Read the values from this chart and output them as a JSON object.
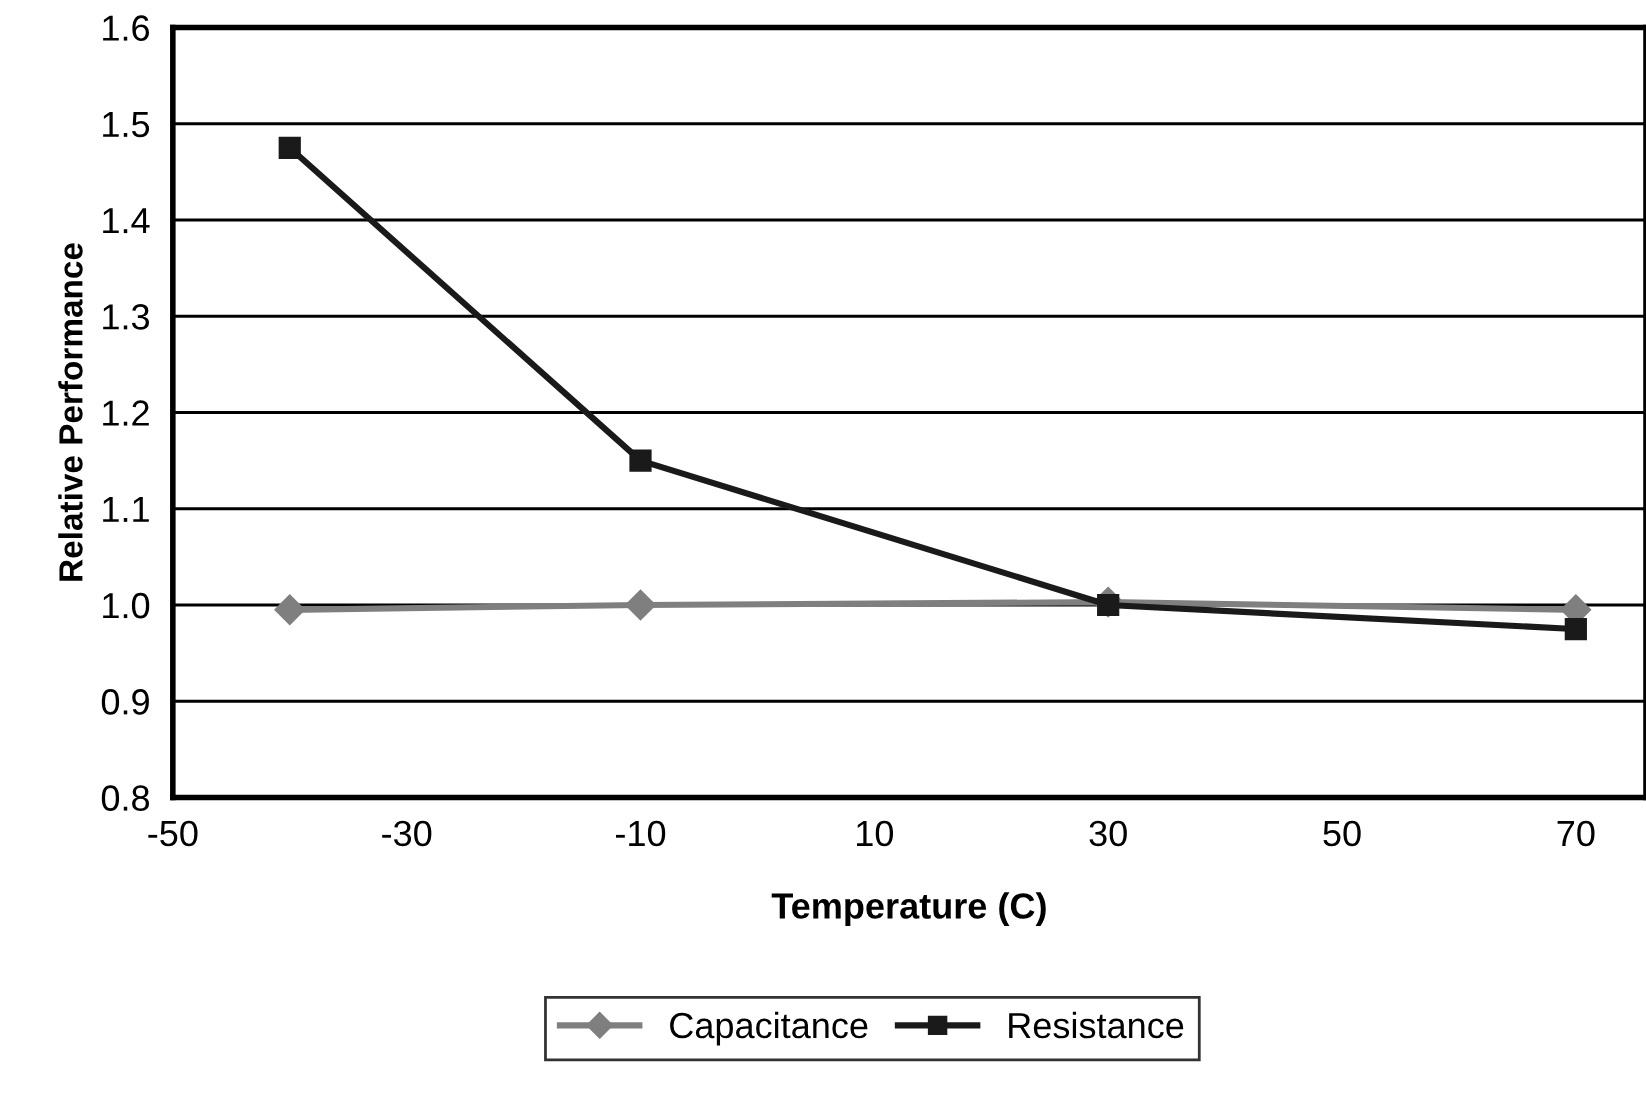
{
  "chart_data": {
    "type": "line",
    "xlabel": "Temperature (C)",
    "ylabel": "Relative Performance",
    "xlim": [
      -50,
      76
    ],
    "xticks": [
      -50,
      -30,
      -10,
      10,
      30,
      50,
      70
    ],
    "ylim": [
      0.8,
      1.6
    ],
    "yticks": [
      0.8,
      0.9,
      {
        "value": 1.0,
        "label": "1.0"
      },
      1.1,
      1.2,
      1.3,
      1.4,
      1.5,
      1.6
    ],
    "grid": "y",
    "legend": "bottom",
    "line_style": "solid",
    "series": [
      {
        "name": "Capacitance",
        "color": "#7f7f7f",
        "marker": "diamond",
        "x": [
          -40,
          -10,
          30,
          70
        ],
        "values": [
          0.995,
          1.0,
          1.003,
          0.995
        ]
      },
      {
        "name": "Resistance",
        "color": "#1a1a1a",
        "marker": "square",
        "x": [
          -40,
          -10,
          30,
          70
        ],
        "values": [
          1.475,
          1.15,
          1.0,
          0.975
        ]
      }
    ]
  }
}
